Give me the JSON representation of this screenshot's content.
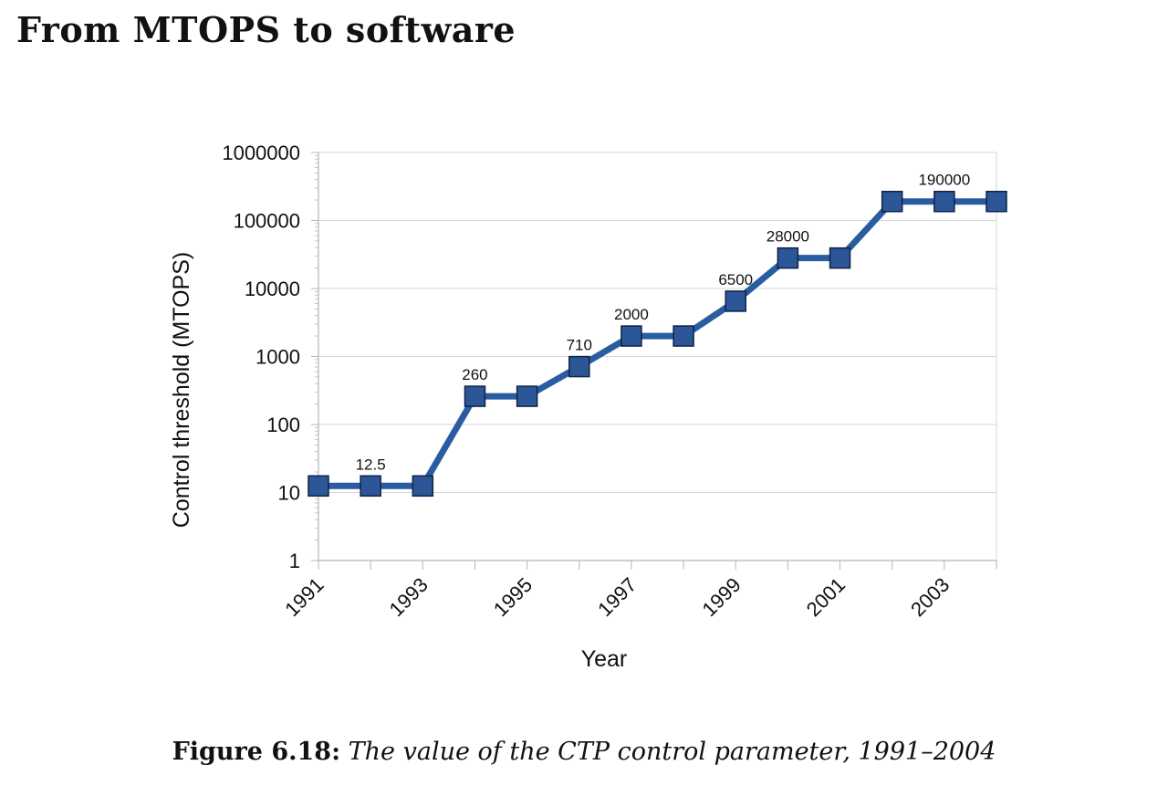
{
  "page": {
    "title": "From MTOPS to software"
  },
  "caption": {
    "label": "Figure 6.18:",
    "text": "The value of the CTP control parameter, 1991–2004"
  },
  "chart_data": {
    "type": "line",
    "title": "",
    "xlabel": "Year",
    "ylabel": "Control threshold (MTOPS)",
    "yscale": "log",
    "ylim": [
      1,
      1000000
    ],
    "y_ticks": [
      "1",
      "10",
      "100",
      "1000",
      "10000",
      "100000",
      "1000000"
    ],
    "x_ticks": [
      "1991",
      "1993",
      "1995",
      "1997",
      "1999",
      "2001",
      "2003"
    ],
    "x": [
      1991,
      1992,
      1993,
      1994,
      1995,
      1996,
      1997,
      1998,
      1999,
      2000,
      2001,
      2002,
      2003,
      2004
    ],
    "series": [
      {
        "name": "Control threshold",
        "values": [
          12.5,
          12.5,
          12.5,
          260,
          260,
          710,
          2000,
          2000,
          6500,
          28000,
          28000,
          190000,
          190000,
          190000
        ],
        "color": "#2A5CA2",
        "marker_fill": "#2C5698",
        "marker_edge": "#0F2444"
      }
    ],
    "data_labels": [
      {
        "x": 1992,
        "text": "12.5"
      },
      {
        "x": 1994,
        "text": "260"
      },
      {
        "x": 1996,
        "text": "710"
      },
      {
        "x": 1997,
        "text": "2000"
      },
      {
        "x": 1999,
        "text": "6500"
      },
      {
        "x": 2000,
        "text": "28000"
      },
      {
        "x": 2003,
        "text": "190000"
      }
    ],
    "grid": true,
    "legend": "none"
  }
}
